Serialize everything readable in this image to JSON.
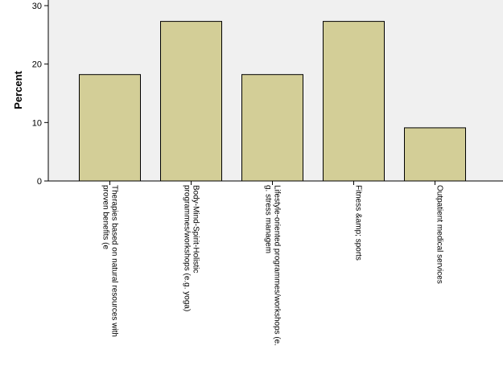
{
  "chart_data": {
    "type": "bar",
    "title": "",
    "xlabel": "",
    "ylabel": "Percent",
    "ylim": [
      0,
      30
    ],
    "yticks": [
      0,
      10,
      20,
      30
    ],
    "grid": false,
    "colors": {
      "plot_background": "#f0f0f0",
      "bar_fill": "#d3ce97",
      "bar_stroke": "#000000"
    },
    "categories": [
      [
        "Therapies based on natural resources with",
        "proven benefits (e"
      ],
      [
        "Body-Mind-Spirit-Holistic",
        "programmes/workshops (e.g. yoga)"
      ],
      [
        "Lifestyle-oriented programmes/workshops (e.",
        "g. stress managem"
      ],
      [
        "Fitness &amp; sports"
      ],
      [
        "Outpatient medical services"
      ]
    ],
    "values": [
      18.2,
      27.3,
      18.2,
      27.3,
      9.1
    ]
  }
}
